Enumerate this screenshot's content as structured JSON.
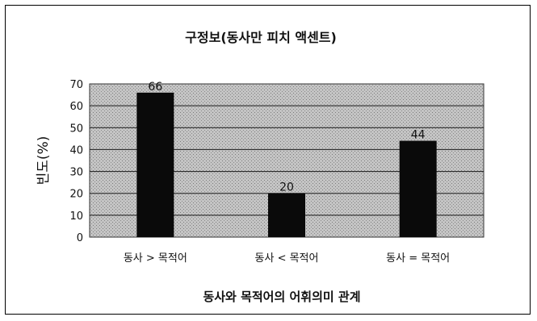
{
  "chart_data": {
    "type": "bar",
    "title": "구정보(동사만 피치 액센트)",
    "xlabel": "동사와 목적어의 어휘의미 관계",
    "ylabel": "빈도(%)",
    "categories": [
      "동사 > 목적어",
      "동사 < 목적어",
      "동사 = 목적어"
    ],
    "values": [
      66,
      20,
      44
    ],
    "data_labels": [
      "66",
      "20",
      "44"
    ],
    "ylim": [
      0,
      70
    ],
    "yticks": [
      0,
      10,
      20,
      30,
      40,
      50,
      60,
      70
    ],
    "grid": true,
    "legend": "none",
    "colors": {
      "bar": "#0a0a0a",
      "plot_area": "#b9b9b9",
      "grid": "#1a1a1a"
    }
  }
}
